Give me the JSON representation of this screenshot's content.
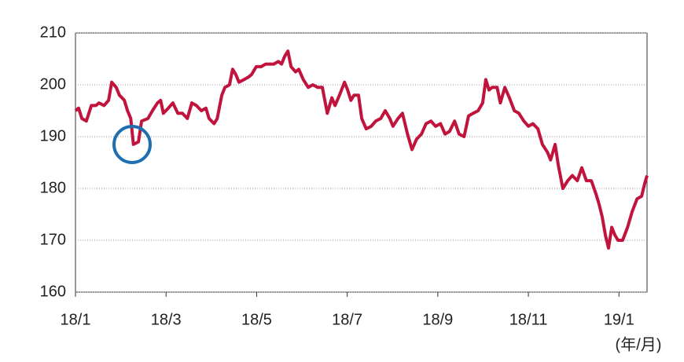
{
  "chart_data": {
    "type": "line",
    "x_label": "(年/月)",
    "xlim": [
      0,
      12.62
    ],
    "xticks": [
      {
        "value": 0,
        "label": "18/1"
      },
      {
        "value": 2,
        "label": "18/3"
      },
      {
        "value": 4,
        "label": "18/5"
      },
      {
        "value": 6,
        "label": "18/7"
      },
      {
        "value": 8,
        "label": "18/9"
      },
      {
        "value": 10,
        "label": "18/11"
      },
      {
        "value": 12,
        "label": "19/1"
      }
    ],
    "ylim": [
      160,
      210
    ],
    "yticks": [
      160,
      170,
      180,
      190,
      200,
      210
    ],
    "grid": true,
    "series": [
      {
        "color": "#c0143c",
        "x": [
          0,
          0.07,
          0.14,
          0.24,
          0.35,
          0.45,
          0.52,
          0.63,
          0.73,
          0.8,
          0.9,
          0.97,
          1.08,
          1.15,
          1.22,
          1.28,
          1.39,
          1.46,
          1.6,
          1.7,
          1.81,
          1.88,
          1.94,
          2.05,
          2.15,
          2.26,
          2.36,
          2.47,
          2.57,
          2.67,
          2.78,
          2.88,
          2.95,
          3.06,
          3.13,
          3.23,
          3.3,
          3.4,
          3.47,
          3.54,
          3.61,
          3.72,
          3.82,
          3.89,
          3.99,
          4.1,
          4.2,
          4.27,
          4.38,
          4.48,
          4.55,
          4.62,
          4.69,
          4.76,
          4.86,
          4.93,
          5.03,
          5.14,
          5.24,
          5.35,
          5.45,
          5.56,
          5.66,
          5.73,
          5.83,
          5.94,
          6.01,
          6.08,
          6.15,
          6.25,
          6.32,
          6.42,
          6.53,
          6.63,
          6.74,
          6.84,
          6.94,
          7.01,
          7.12,
          7.22,
          7.33,
          7.43,
          7.53,
          7.64,
          7.74,
          7.85,
          7.95,
          8.06,
          8.16,
          8.26,
          8.37,
          8.47,
          8.58,
          8.68,
          8.78,
          8.89,
          8.99,
          9.06,
          9.13,
          9.2,
          9.31,
          9.38,
          9.48,
          9.58,
          9.69,
          9.79,
          9.9,
          10,
          10.1,
          10.21,
          10.31,
          10.42,
          10.49,
          10.59,
          10.66,
          10.76,
          10.87,
          10.97,
          11.08,
          11.18,
          11.28,
          11.39,
          11.49,
          11.56,
          11.63,
          11.7,
          11.77,
          11.84,
          11.91,
          11.98,
          12.08,
          12.19,
          12.29,
          12.4,
          12.5,
          12.57,
          12.62
        ],
        "values": [
          195,
          195.5,
          193.5,
          193,
          196,
          196,
          196.5,
          196,
          197,
          200.5,
          199.5,
          198,
          197,
          195,
          193.5,
          188.5,
          189,
          193,
          193.5,
          195,
          196.5,
          197,
          194.5,
          195.5,
          196.5,
          194.5,
          194.5,
          193.5,
          196.5,
          196,
          195,
          195.5,
          193.5,
          192.5,
          193.5,
          198,
          199.5,
          200,
          203,
          202,
          200.5,
          201,
          201.5,
          202,
          203.5,
          203.5,
          204,
          204,
          204,
          204.5,
          204,
          205.5,
          206.5,
          203.5,
          202.5,
          203,
          201,
          199.5,
          200,
          199.5,
          199.5,
          194.5,
          197.5,
          196,
          198,
          200.5,
          199,
          197,
          198,
          198,
          193.5,
          191.5,
          192,
          193,
          193.5,
          195,
          193.5,
          192,
          193.5,
          194.5,
          190.5,
          187.5,
          189.5,
          190.5,
          192.5,
          193,
          192,
          192.5,
          190.5,
          191,
          193,
          190.5,
          190,
          194,
          194.5,
          195,
          196.5,
          201,
          199,
          199.5,
          199.5,
          196.5,
          199.5,
          197.5,
          195,
          194.5,
          193,
          192,
          192.5,
          191.5,
          188.5,
          187,
          185.5,
          188.5,
          184.5,
          180,
          181.5,
          182.5,
          181.5,
          184,
          181.5,
          181.5,
          179,
          177,
          174.5,
          171,
          168.5,
          172.5,
          171,
          170,
          170,
          172.5,
          175.5,
          178,
          178.5,
          181,
          182.5
        ]
      }
    ]
  }
}
